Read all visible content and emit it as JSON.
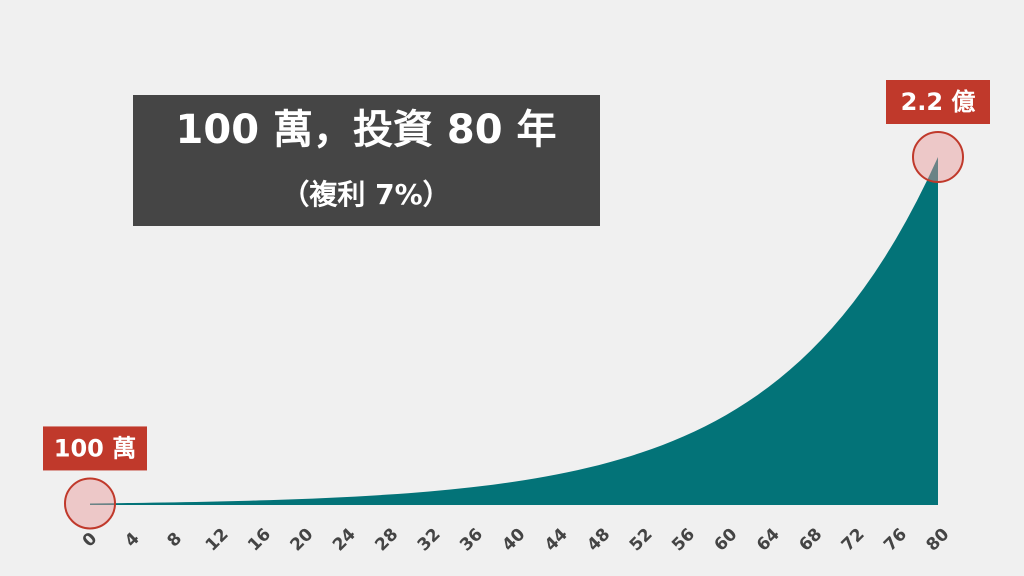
{
  "chart_data": {
    "type": "area",
    "title": "100 萬，投資 80 年",
    "subtitle": "（複利 7%）",
    "color": "#037378",
    "x": [
      0,
      1,
      2,
      3,
      4,
      5,
      6,
      7,
      8,
      9,
      10,
      11,
      12,
      13,
      14,
      15,
      16,
      17,
      18,
      19,
      20,
      21,
      22,
      23,
      24,
      25,
      26,
      27,
      28,
      29,
      30,
      31,
      32,
      33,
      34,
      35,
      36,
      37,
      38,
      39,
      40,
      41,
      42,
      43,
      44,
      45,
      46,
      47,
      48,
      49,
      50,
      51,
      52,
      53,
      54,
      55,
      56,
      57,
      58,
      59,
      60,
      61,
      62,
      63,
      64,
      65,
      66,
      67,
      68,
      69,
      70,
      71,
      72,
      73,
      74,
      75,
      76,
      77,
      78,
      79,
      80
    ],
    "values": [
      100,
      107,
      114,
      123,
      131,
      140,
      150,
      161,
      172,
      184,
      197,
      210,
      225,
      241,
      258,
      276,
      295,
      316,
      338,
      362,
      387,
      414,
      443,
      474,
      507,
      543,
      581,
      621,
      665,
      711,
      761,
      815,
      872,
      933,
      998,
      1068,
      1142,
      1222,
      1308,
      1399,
      1497,
      1602,
      1714,
      1834,
      1963,
      2100,
      2247,
      2405,
      2573,
      2753,
      2946,
      3152,
      3373,
      3609,
      3861,
      4132,
      4421,
      4730,
      5061,
      5416,
      5795,
      6200,
      6634,
      7099,
      7596,
      8127,
      8696,
      9305,
      9956,
      10653,
      11399,
      12197,
      13051,
      13964,
      14942,
      15988,
      17107,
      18304,
      19585,
      20956,
      22423
    ],
    "xlim": [
      0,
      80
    ],
    "xticks": [
      0,
      4,
      8,
      12,
      16,
      20,
      24,
      28,
      32,
      36,
      40,
      44,
      48,
      52,
      56,
      60,
      64,
      68,
      72,
      76,
      80
    ],
    "ylim": [
      0,
      22423
    ],
    "annotations": [
      {
        "x": 0,
        "label": "100 萬"
      },
      {
        "x": 80,
        "label": "2.2 億"
      }
    ]
  }
}
